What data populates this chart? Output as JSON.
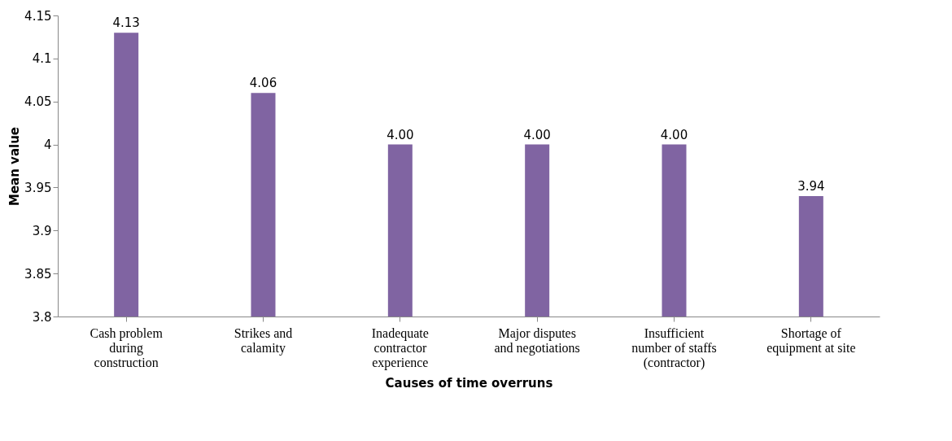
{
  "chart_data": {
    "type": "bar",
    "xlabel": "Causes of time overruns",
    "ylabel": "Mean value",
    "categories": [
      "Cash problem during construction",
      "Strikes and calamity",
      "Inadequate contractor experience",
      "Major disputes and negotiations",
      "Insufficient number of staffs (contractor)",
      "Shortage of equipment at site"
    ],
    "values": [
      4.13,
      4.06,
      4.0,
      4.0,
      4.0,
      3.94
    ],
    "value_labels": [
      "4.13",
      "4.06",
      "4.00",
      "4.00",
      "4.00",
      "3.94"
    ],
    "color": "#8064a2",
    "ylim": [
      3.8,
      4.15
    ],
    "yticks": [
      3.8,
      3.85,
      3.9,
      3.95,
      4,
      4.05,
      4.1,
      4.15
    ],
    "grid": false
  }
}
